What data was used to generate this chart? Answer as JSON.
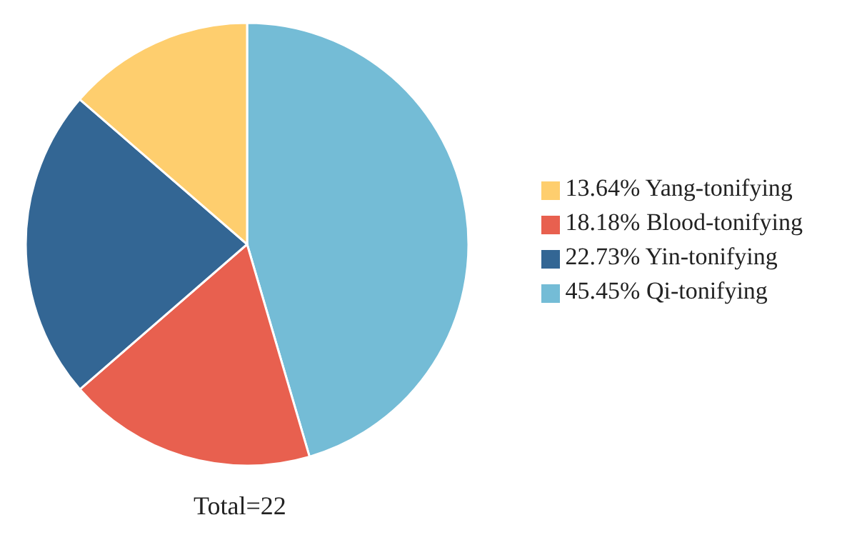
{
  "chart_data": {
    "type": "pie",
    "categories": [
      "45.45% Qi-tonifying",
      "18.18% Blood-tonifying",
      "22.73% Yin-tonifying",
      "13.64% Yang-tonifying"
    ],
    "values": [
      45.45,
      18.18,
      22.73,
      13.64
    ],
    "colors": [
      "#74bcd6",
      "#e8604f",
      "#336694",
      "#fece6e"
    ],
    "legend": "right",
    "annotations": [
      "Total=22"
    ]
  }
}
